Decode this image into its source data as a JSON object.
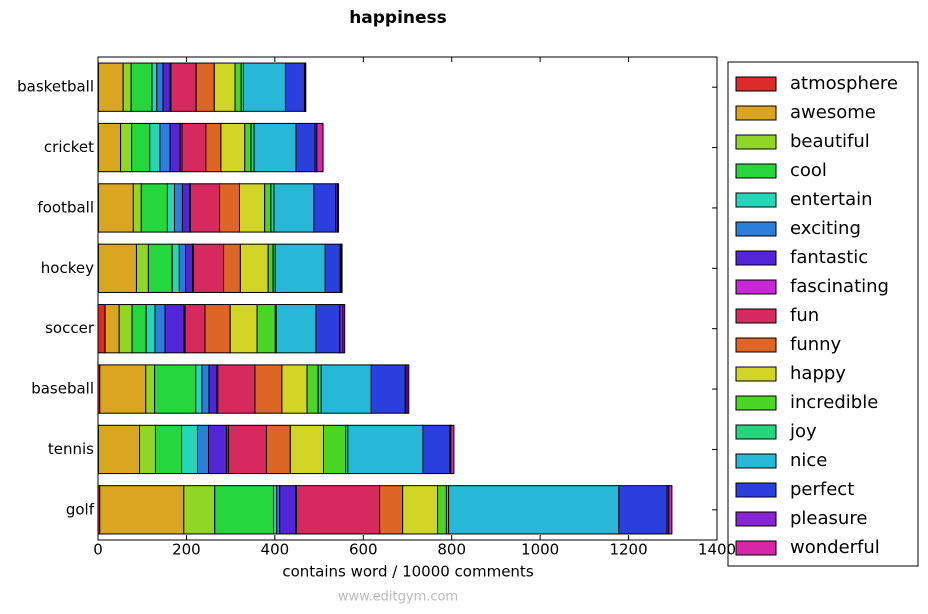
{
  "chart_data": {
    "type": "stacked_barh",
    "title": "happiness",
    "xlabel": "contains word / 10000 comments",
    "watermark": "www.editgym.com",
    "categories": [
      "basketball",
      "cricket",
      "football",
      "hockey",
      "soccer",
      "baseball",
      "tennis",
      "golf"
    ],
    "xlim": [
      0,
      1400
    ],
    "xticks": [
      0,
      200,
      400,
      600,
      800,
      1000,
      1200,
      1400
    ],
    "legend": "outside-right",
    "series": [
      {
        "name": "atmosphere",
        "color": "#dd2a2a",
        "values": [
          1,
          1,
          1,
          1,
          16,
          4,
          1,
          4
        ]
      },
      {
        "name": "awesome",
        "color": "#daa520",
        "values": [
          56,
          50,
          79,
          86,
          32,
          104,
          93,
          190
        ]
      },
      {
        "name": "beautiful",
        "color": "#8fd626",
        "values": [
          18,
          25,
          18,
          27,
          29,
          20,
          36,
          70
        ]
      },
      {
        "name": "cool",
        "color": "#26d63d",
        "values": [
          47,
          41,
          59,
          54,
          32,
          93,
          59,
          133
        ]
      },
      {
        "name": "entertain",
        "color": "#26d6b8",
        "values": [
          11,
          23,
          16,
          16,
          20,
          14,
          36,
          7
        ]
      },
      {
        "name": "exciting",
        "color": "#2a7fdd",
        "values": [
          14,
          23,
          18,
          14,
          23,
          16,
          25,
          7
        ]
      },
      {
        "name": "fantastic",
        "color": "#5226d6",
        "values": [
          16,
          23,
          16,
          16,
          43,
          18,
          41,
          36
        ]
      },
      {
        "name": "fascinating",
        "color": "#c826d6",
        "values": [
          2,
          4,
          2,
          2,
          2,
          2,
          4,
          2
        ]
      },
      {
        "name": "fun",
        "color": "#d62a5e",
        "values": [
          57,
          54,
          66,
          68,
          45,
          84,
          86,
          188
        ]
      },
      {
        "name": "funny",
        "color": "#dd6626",
        "values": [
          41,
          34,
          45,
          38,
          57,
          61,
          54,
          52
        ]
      },
      {
        "name": "happy",
        "color": "#d1d626",
        "values": [
          47,
          54,
          57,
          63,
          61,
          57,
          75,
          79
        ]
      },
      {
        "name": "incredible",
        "color": "#4bd626",
        "values": [
          14,
          14,
          14,
          11,
          41,
          25,
          50,
          20
        ]
      },
      {
        "name": "joy",
        "color": "#26d67a",
        "values": [
          5,
          7,
          7,
          5,
          2,
          7,
          5,
          5
        ]
      },
      {
        "name": "nice",
        "color": "#26b8d6",
        "values": [
          95,
          95,
          90,
          113,
          90,
          113,
          170,
          385
        ]
      },
      {
        "name": "perfect",
        "color": "#2a3fdd",
        "values": [
          43,
          43,
          50,
          34,
          54,
          77,
          61,
          109
        ]
      },
      {
        "name": "pleasure",
        "color": "#8826d6",
        "values": [
          2,
          4,
          4,
          2,
          7,
          4,
          2,
          4
        ]
      },
      {
        "name": "wonderful",
        "color": "#d626a6",
        "values": [
          1,
          14,
          2,
          2,
          4,
          4,
          7,
          7
        ]
      }
    ]
  }
}
